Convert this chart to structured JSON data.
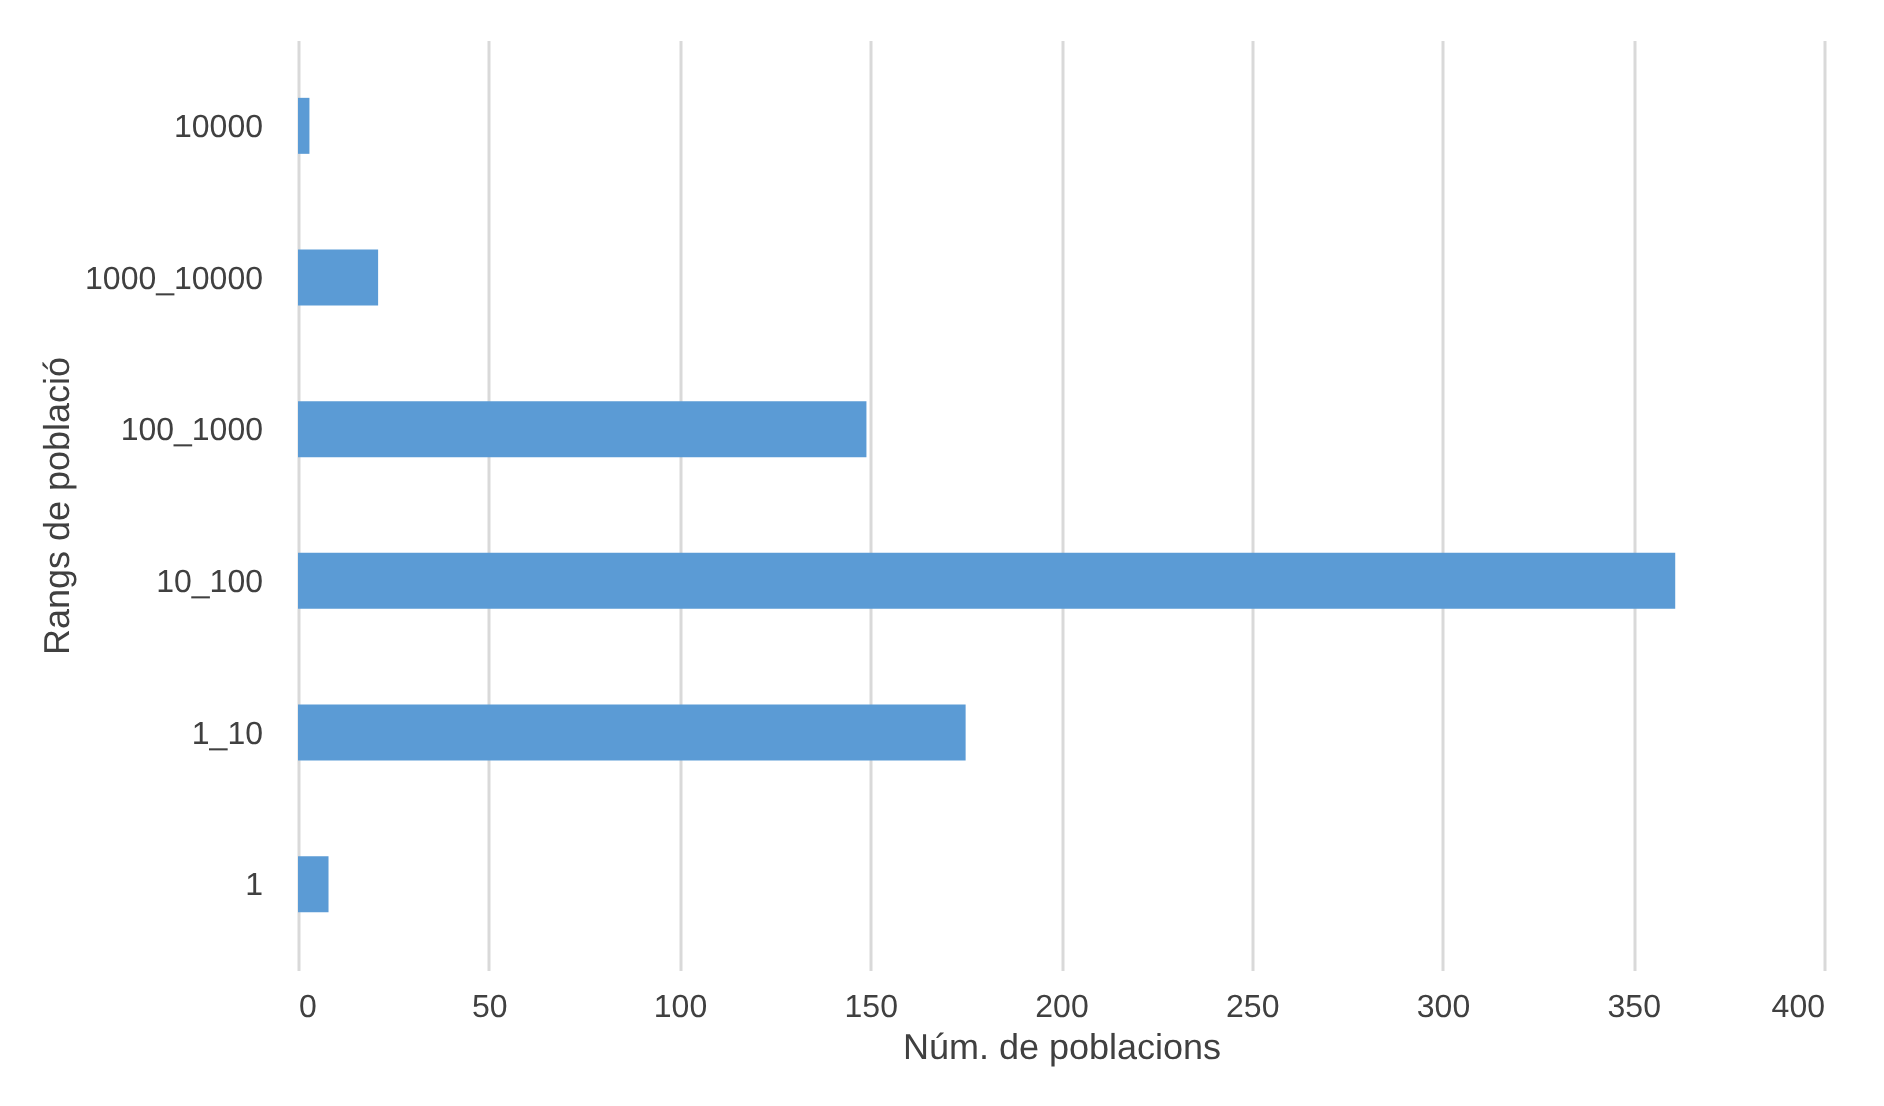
{
  "chart_data": {
    "type": "bar",
    "orientation": "horizontal",
    "xlabel": "Núm. de poblacions",
    "ylabel": "Rangs de població",
    "categories": [
      "10000",
      "1000_10000",
      "100_1000",
      "10_100",
      "1_10",
      "1"
    ],
    "values": [
      3,
      21,
      149,
      361,
      175,
      8
    ],
    "color": "#5b9bd5",
    "xlim": [
      0,
      400
    ],
    "xticks": [
      0,
      50,
      100,
      150,
      200,
      250,
      300,
      350,
      400
    ],
    "grid": "x"
  }
}
